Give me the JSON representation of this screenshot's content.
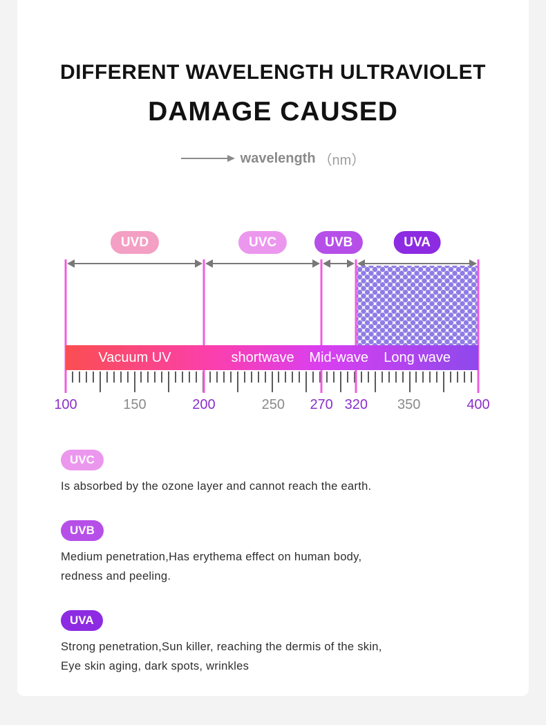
{
  "header": {
    "title_line1": "DIFFERENT WAVELENGTH ULTRAVIOLET",
    "title_line2": "DAMAGE CAUSED",
    "axis_caption": "wavelength",
    "axis_unit": "（nm）"
  },
  "chart_data": {
    "type": "diagram-scale",
    "axis": {
      "label": "wavelength",
      "unit": "nm",
      "min": 100,
      "max": 400
    },
    "boundaries_nm": [
      100,
      200,
      270,
      320,
      400
    ],
    "boundary_percents": [
      0,
      33.5,
      62.0,
      70.4,
      100
    ],
    "bands": [
      {
        "label": "UVD",
        "range_nm": "100-200",
        "pill_color": "#f49fc4",
        "bar_label": "Vacuum UV"
      },
      {
        "label": "UVC",
        "range_nm": "200-270",
        "pill_color": "#ec97ee",
        "bar_label": "shortwave"
      },
      {
        "label": "UVB",
        "range_nm": "270-320",
        "pill_color": "#b64fe8",
        "bar_label": "Mid-wave"
      },
      {
        "label": "UVA",
        "range_nm": "320-400",
        "pill_color": "#8d2be2",
        "bar_label": "Long wave"
      }
    ],
    "scale_ticks": [
      {
        "value": "100",
        "percent": 0,
        "highlight": true
      },
      {
        "value": "150",
        "percent": 16.75,
        "highlight": false
      },
      {
        "value": "200",
        "percent": 33.5,
        "highlight": true
      },
      {
        "value": "250",
        "percent": 50.3,
        "highlight": false
      },
      {
        "value": "270",
        "percent": 62.0,
        "highlight": true
      },
      {
        "value": "320",
        "percent": 70.4,
        "highlight": true
      },
      {
        "value": "350",
        "percent": 83.2,
        "highlight": false
      },
      {
        "value": "400",
        "percent": 100,
        "highlight": true
      }
    ],
    "ruler": {
      "intervals": 60,
      "long_every": 5
    },
    "colors": {
      "bar_gradient": [
        "#fa4e52",
        "#fb3fae",
        "#d93ff0",
        "#8d49ec"
      ],
      "guide_line": "#f05ce0",
      "dim_arrow": "#787878",
      "tick_highlight": "#8b2fc9",
      "tick_normal": "#8a8a8a",
      "dot_pattern": "#8f7ce4"
    }
  },
  "sections": [
    {
      "label": "UVC",
      "pill_color": "#ec97ee",
      "lines": [
        "Is absorbed by the ozone layer and cannot reach the earth."
      ]
    },
    {
      "label": "UVB",
      "pill_color": "#b64fe8",
      "lines": [
        "Medium penetration,Has erythema effect on human body,",
        "redness and peeling."
      ]
    },
    {
      "label": "UVA",
      "pill_color": "#8d2be2",
      "lines": [
        "Strong penetration,Sun killer, reaching the dermis of the skin,",
        "Eye skin aging, dark spots, wrinkles"
      ]
    }
  ]
}
